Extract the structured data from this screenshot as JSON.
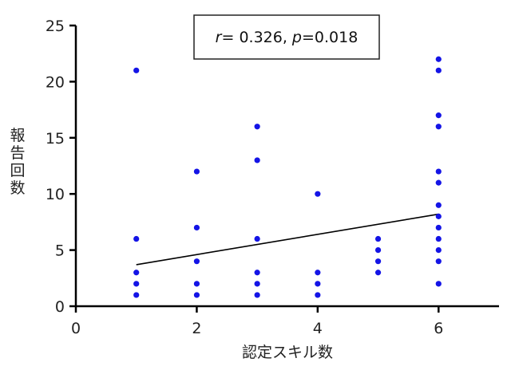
{
  "chart_data": {
    "type": "scatter",
    "xlabel": "認定スキル数",
    "ylabel": "報告回数",
    "xlim": [
      0,
      7
    ],
    "ylim": [
      0,
      25
    ],
    "x_ticks": [
      "0",
      "2",
      "4",
      "6"
    ],
    "y_ticks": [
      "0",
      "5",
      "10",
      "15",
      "20",
      "25"
    ],
    "grid": false,
    "point_color": "#1414e6",
    "annotation": {
      "r_symbol": "r",
      "r_text": "= 0.326, ",
      "p_symbol": "p",
      "p_text": "=0.018"
    },
    "points": [
      [
        1,
        1
      ],
      [
        1,
        2
      ],
      [
        1,
        3
      ],
      [
        1,
        6
      ],
      [
        1,
        21
      ],
      [
        2,
        1
      ],
      [
        2,
        2
      ],
      [
        2,
        4
      ],
      [
        2,
        7
      ],
      [
        2,
        12
      ],
      [
        3,
        1
      ],
      [
        3,
        2
      ],
      [
        3,
        3
      ],
      [
        3,
        6
      ],
      [
        3,
        13
      ],
      [
        3,
        16
      ],
      [
        4,
        1
      ],
      [
        4,
        2
      ],
      [
        4,
        3
      ],
      [
        4,
        10
      ],
      [
        5,
        3
      ],
      [
        5,
        4
      ],
      [
        5,
        5
      ],
      [
        5,
        6
      ],
      [
        6,
        2
      ],
      [
        6,
        4
      ],
      [
        6,
        5
      ],
      [
        6,
        6
      ],
      [
        6,
        7
      ],
      [
        6,
        8
      ],
      [
        6,
        9
      ],
      [
        6,
        11
      ],
      [
        6,
        12
      ],
      [
        6,
        16
      ],
      [
        6,
        17
      ],
      [
        6,
        21
      ],
      [
        6,
        22
      ]
    ],
    "regression_line": {
      "x": [
        1,
        6
      ],
      "y": [
        3.7,
        8.2
      ]
    }
  }
}
